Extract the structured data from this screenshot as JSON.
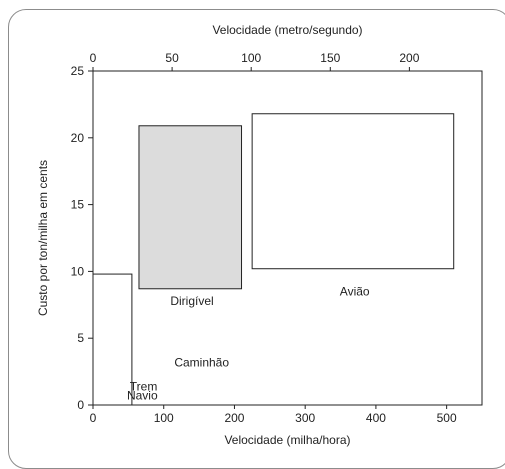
{
  "chart_data": {
    "type": "area",
    "title": "",
    "xlabel": "Velocidade (milha/hora)",
    "x2label": "Velocidade (metro/segundo)",
    "ylabel": "Custo por ton/milha em cents",
    "xlim": [
      0,
      550
    ],
    "x2lim": [
      0,
      245.9
    ],
    "ylim": [
      0,
      25
    ],
    "x_ticks": [
      0,
      100,
      200,
      300,
      400,
      500
    ],
    "x2_ticks": [
      0,
      50,
      100,
      150,
      200
    ],
    "y_ticks": [
      0,
      5,
      10,
      15,
      20,
      25
    ],
    "grid": false,
    "legend": "none",
    "regions": [
      {
        "name": "Navio",
        "x": [
          0,
          22
        ],
        "y": [
          0,
          0.8
        ],
        "fill": "#ffffff",
        "label_pos": [
          48,
          0.4
        ]
      },
      {
        "name": "Trem",
        "x": [
          0,
          37
        ],
        "y": [
          0,
          3.4
        ],
        "fill": "#ffffff",
        "label_pos": [
          52,
          1.1
        ]
      },
      {
        "name": "Caminhão",
        "x": [
          0,
          55
        ],
        "y": [
          0,
          9.8
        ],
        "fill": "#ffffff",
        "label_pos": [
          115,
          2.9
        ]
      },
      {
        "name": "Dirigível",
        "x": [
          65,
          210
        ],
        "y": [
          8.7,
          20.9
        ],
        "fill": "#dcdcdc",
        "label_pos": [
          140,
          7.5
        ]
      },
      {
        "name": "Avião",
        "x": [
          225,
          510
        ],
        "y": [
          10.2,
          21.8
        ],
        "fill": "#ffffff",
        "label_pos": [
          370,
          8.2
        ]
      }
    ]
  }
}
